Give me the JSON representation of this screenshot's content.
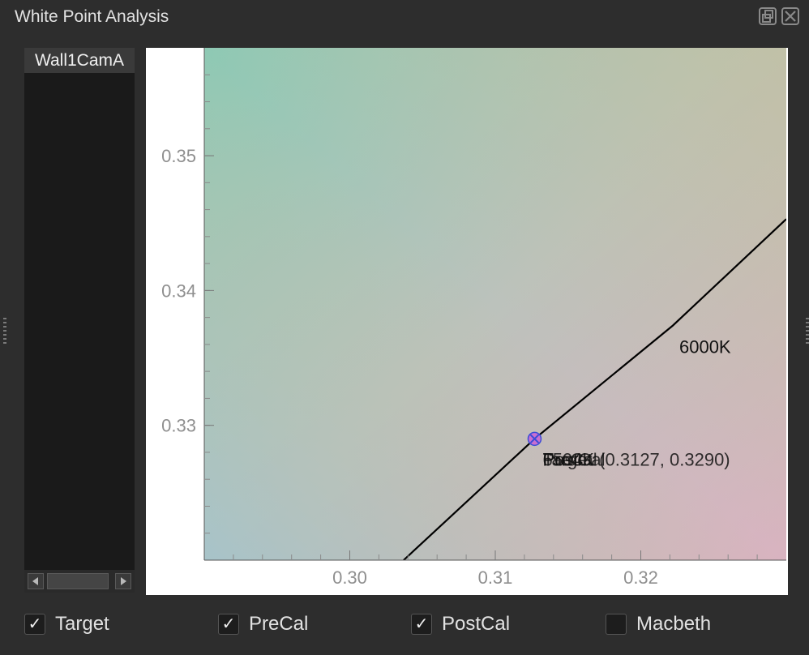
{
  "window": {
    "title": "White Point Analysis"
  },
  "list": {
    "header": "Wall1CamA",
    "items": []
  },
  "chart_data": {
    "type": "scatter",
    "title": "",
    "xlabel": "",
    "ylabel": "",
    "xlim": [
      0.29,
      0.33
    ],
    "ylim": [
      0.32,
      0.358
    ],
    "xticks": [
      0.3,
      0.31,
      0.32
    ],
    "xtick_labels": [
      "0.30",
      "0.31",
      "0.32"
    ],
    "yticks": [
      0.33,
      0.34,
      0.35
    ],
    "ytick_labels": [
      "0.33",
      "0.34",
      "0.35"
    ],
    "locus": {
      "x": [
        0.3037,
        0.3127,
        0.3222,
        0.33
      ],
      "y": [
        0.32,
        0.329,
        0.3374,
        0.3453
      ],
      "label": "6000K",
      "label_at": [
        0.3222,
        0.3374
      ]
    },
    "point": {
      "x": 0.3127,
      "y": 0.329
    },
    "point_labels": [
      "Target",
      "PreCal",
      "PostCal",
      "6504K (0.3127, 0.3290)"
    ],
    "colors": {
      "line": "#000000",
      "marker_fill": "#c96fd0",
      "marker_edge": "#3a4bd8"
    }
  },
  "checkboxes": [
    {
      "label": "Target",
      "checked": true,
      "mark": "✓"
    },
    {
      "label": "PreCal",
      "checked": true,
      "mark": "✓"
    },
    {
      "label": "PostCal",
      "checked": true,
      "mark": "✓"
    },
    {
      "label": "Macbeth",
      "checked": false,
      "mark": ""
    }
  ]
}
